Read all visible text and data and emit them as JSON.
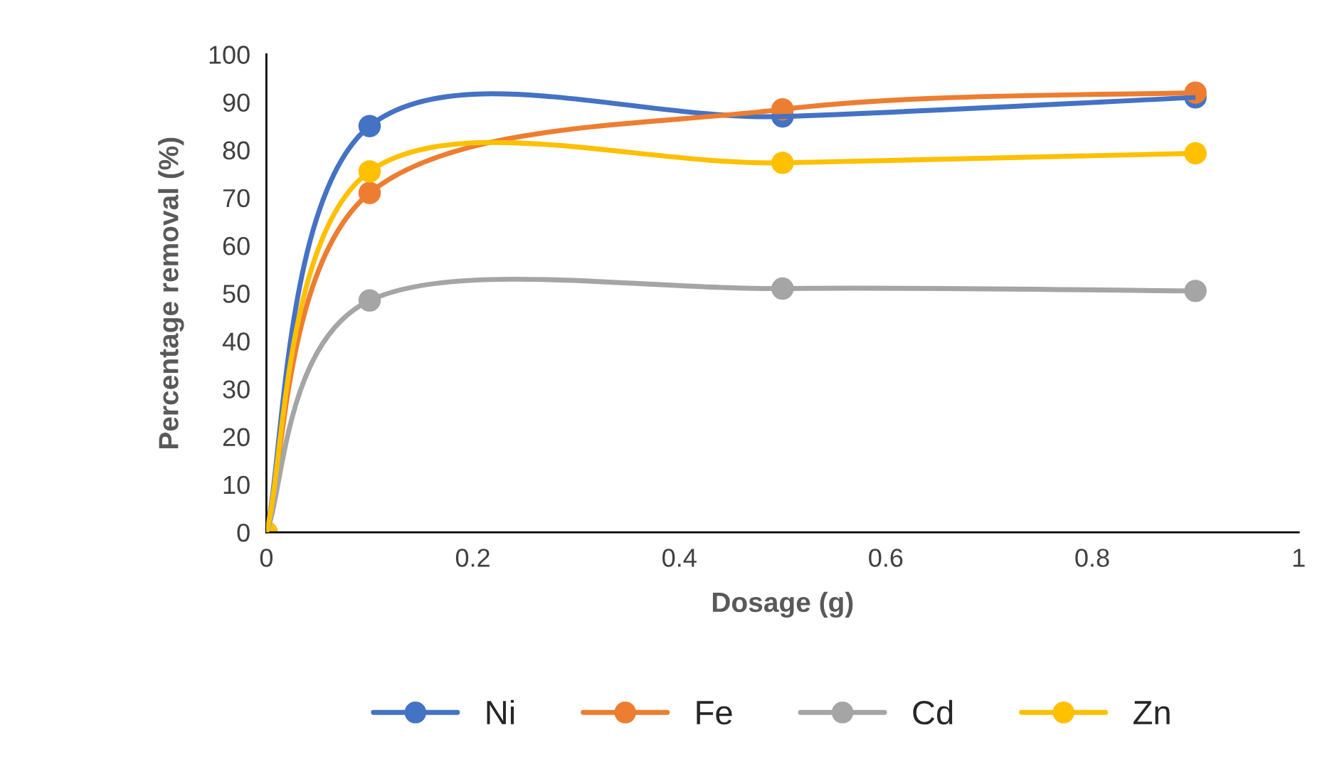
{
  "chart_data": {
    "type": "line",
    "xlabel": "Dosage (g)",
    "ylabel": "Percentage removal (%)",
    "x": [
      0,
      0.1,
      0.5,
      0.9
    ],
    "series": [
      {
        "name": "Ni",
        "color": "#4472c4",
        "values": [
          0,
          85,
          87,
          91
        ]
      },
      {
        "name": "Fe",
        "color": "#ed7d31",
        "values": [
          0,
          71,
          88.5,
          92
        ]
      },
      {
        "name": "Cd",
        "color": "#a5a5a5",
        "values": [
          0,
          48.5,
          51,
          50.5
        ]
      },
      {
        "name": "Zn",
        "color": "#ffc000",
        "values": [
          0,
          75.5,
          77.3,
          79.3
        ]
      }
    ],
    "xlim": [
      0,
      1
    ],
    "xticks": [
      0,
      0.2,
      0.4,
      0.6,
      0.8,
      1
    ],
    "ylim": [
      0,
      100
    ],
    "yticks": [
      0,
      10,
      20,
      30,
      40,
      50,
      60,
      70,
      80,
      90,
      100
    ],
    "grid": false,
    "legend": "bottom",
    "marker": "circle",
    "line_style": "solid"
  }
}
